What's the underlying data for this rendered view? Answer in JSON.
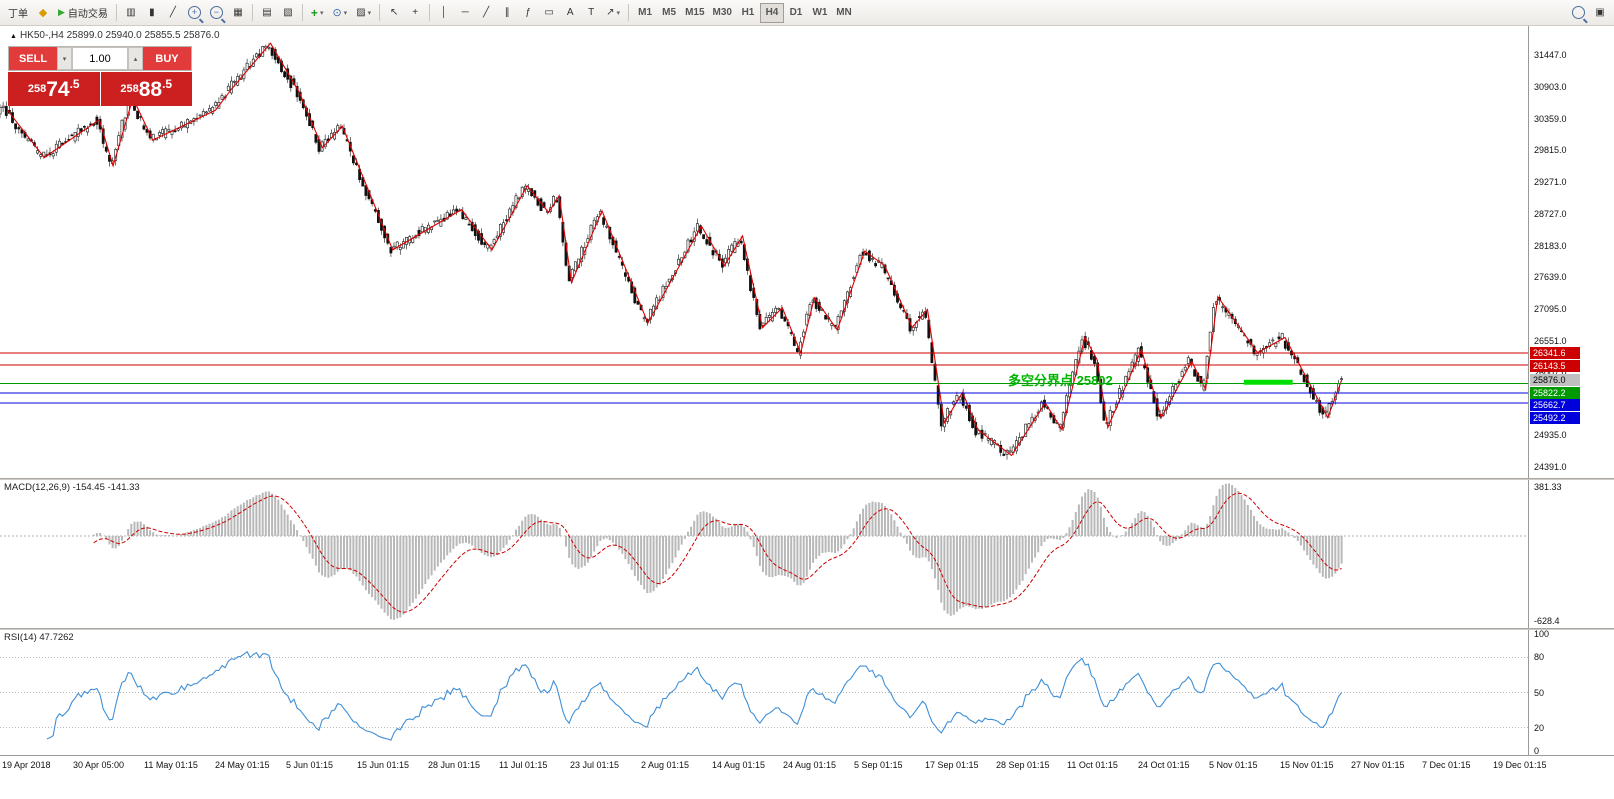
{
  "toolbar": {
    "new_order_label": "丁单",
    "autotrade_label": "自动交易",
    "timeframes": [
      "M1",
      "M5",
      "M15",
      "M30",
      "H1",
      "H4",
      "D1",
      "W1",
      "MN"
    ],
    "active_timeframe": "H4",
    "icons": {
      "gold": "◆",
      "autotrade_play": "▶",
      "bars": "▥",
      "candles": "▮",
      "line": "╱",
      "plus": "+",
      "minus": "−",
      "tile": "▦",
      "arrange": "▤",
      "cascade": "▧",
      "dropdown": "▾",
      "indicator_plus": "+",
      "clock": "⊙",
      "template": "▨",
      "cursor": "↖",
      "crosshair": "+",
      "vline": "│",
      "hline": "─",
      "trend": "╱",
      "channel": "∥",
      "fib": "ƒ",
      "shapes": "▭",
      "text": "A",
      "label": "T",
      "arrows": "↗",
      "panel": "▣",
      "collapse": "▲",
      "spin_up": "▴",
      "spin_down": "▾"
    }
  },
  "trade_panel": {
    "sell_label": "SELL",
    "buy_label": "BUY",
    "volume": "1.00",
    "sell_price": {
      "full": "25874.5",
      "prefix": "258",
      "big": "74",
      "frac": ".5"
    },
    "buy_price": {
      "full": "25888.5",
      "prefix": "258",
      "big": "88",
      "frac": ".5"
    }
  },
  "main_chart": {
    "title": "HK50-,H4  25899.0 25940.0 25855.5 25876.0"
  },
  "annotation": {
    "text": "多空分界点 25802",
    "color": "#00b400"
  },
  "chart_data": [
    {
      "type": "candlestick",
      "symbol": "HK50-",
      "timeframe": "H4",
      "ohlc": {
        "open": 25899.0,
        "high": 25940.0,
        "low": 25855.5,
        "close": 25876.0
      },
      "ylim": [
        24205,
        31944
      ],
      "y_tick_labels": [
        "31447.0",
        "30903.0",
        "30359.0",
        "29815.0",
        "29271.0",
        "28727.0",
        "28183.0",
        "27639.0",
        "27095.0",
        "26551.0",
        "26007.0",
        "25463.0",
        "24935.0",
        "24391.0"
      ],
      "x_labels": [
        "19 Apr 2018",
        "30 Apr 05:00",
        "11 May 01:15",
        "24 May 01:15",
        "5 Jun 01:15",
        "15 Jun 01:15",
        "28 Jun 01:15",
        "11 Jul 01:15",
        "23 Jul 01:15",
        "2 Aug 01:15",
        "14 Aug 01:15",
        "24 Aug 01:15",
        "5 Sep 01:15",
        "17 Sep 01:15",
        "28 Sep 01:15",
        "11 Oct 01:15",
        "24 Oct 01:15",
        "5 Nov 01:15",
        "15 Nov 01:15",
        "27 Nov 01:15",
        "7 Dec 01:15",
        "19 Dec 01:15"
      ],
      "candle_count": 430,
      "candle_end_frac": 0.878,
      "zigzag_color": "#e00000",
      "zigzag_pivots": [
        [
          0.005,
          30500
        ],
        [
          0.029,
          29690
        ],
        [
          0.065,
          30340
        ],
        [
          0.074,
          29550
        ],
        [
          0.087,
          30710
        ],
        [
          0.1,
          29990
        ],
        [
          0.141,
          30500
        ],
        [
          0.152,
          30880
        ],
        [
          0.177,
          31650
        ],
        [
          0.196,
          30800
        ],
        [
          0.211,
          29860
        ],
        [
          0.224,
          30230
        ],
        [
          0.257,
          28110
        ],
        [
          0.302,
          28800
        ],
        [
          0.322,
          28110
        ],
        [
          0.345,
          29210
        ],
        [
          0.359,
          28750
        ],
        [
          0.366,
          29040
        ],
        [
          0.374,
          27550
        ],
        [
          0.394,
          28780
        ],
        [
          0.424,
          26860
        ],
        [
          0.459,
          28520
        ],
        [
          0.474,
          27840
        ],
        [
          0.486,
          28350
        ],
        [
          0.499,
          26780
        ],
        [
          0.512,
          27120
        ],
        [
          0.524,
          26350
        ],
        [
          0.533,
          27290
        ],
        [
          0.548,
          26740
        ],
        [
          0.566,
          28090
        ],
        [
          0.579,
          27840
        ],
        [
          0.597,
          26780
        ],
        [
          0.607,
          27090
        ],
        [
          0.618,
          25150
        ],
        [
          0.63,
          25670
        ],
        [
          0.64,
          25030
        ],
        [
          0.662,
          24590
        ],
        [
          0.684,
          25490
        ],
        [
          0.695,
          25030
        ],
        [
          0.71,
          26610
        ],
        [
          0.718,
          26230
        ],
        [
          0.725,
          25070
        ],
        [
          0.747,
          26400
        ],
        [
          0.76,
          25240
        ],
        [
          0.78,
          26200
        ],
        [
          0.789,
          25720
        ],
        [
          0.797,
          27310
        ],
        [
          0.823,
          26350
        ],
        [
          0.841,
          26610
        ],
        [
          0.869,
          25240
        ],
        [
          0.878,
          25880
        ]
      ],
      "hlines": [
        {
          "price": 26341.6,
          "color": "#cc0000"
        },
        {
          "price": 26143.5,
          "color": "#cc0000"
        },
        {
          "price": 25822.2,
          "color": "#009a00"
        },
        {
          "price": 25662.7,
          "color": "#0000dd"
        },
        {
          "price": 25492.2,
          "color": "#0000dd"
        }
      ],
      "green_segment": {
        "x1_frac": 0.814,
        "x2_frac": 0.846,
        "price": 25845,
        "color": "#00e000",
        "width": 5
      },
      "price_tags": [
        {
          "value": "26341.6",
          "price": 26341.6,
          "bg": "#cc0000",
          "fg": "#ffffff"
        },
        {
          "value": "26143.5",
          "price": 26143.5,
          "bg": "#cc0000",
          "fg": "#ffffff"
        },
        {
          "value": "25876.0",
          "price": 25876.0,
          "bg": "#c0c0c0",
          "fg": "#000000"
        },
        {
          "value": "25822.2",
          "price": 25822.2,
          "bg": "#009a00",
          "fg": "#ffffff"
        },
        {
          "value": "25662.7",
          "price": 25662.7,
          "bg": "#0000dd",
          "fg": "#ffffff"
        },
        {
          "value": "25492.2",
          "price": 25492.2,
          "bg": "#0000dd",
          "fg": "#ffffff"
        }
      ]
    },
    {
      "type": "macd",
      "label": "MACD(12,26,9) -154.45 -141.33",
      "params": [
        12,
        26,
        9
      ],
      "main_value": -154.45,
      "signal_value": -141.33,
      "ylim": [
        -628.4,
        381.33
      ],
      "axis_labels": [
        "381.33",
        "-628.4"
      ],
      "hist_color": "#b8b8b8",
      "signal_color": "#cc0000"
    },
    {
      "type": "rsi",
      "label": "RSI(14) 47.7262",
      "period": 14,
      "last_value": 47.7262,
      "ylim": [
        0,
        100
      ],
      "levels": [
        100,
        80,
        50,
        20,
        0
      ],
      "line_color": "#3f8fd6"
    }
  ]
}
